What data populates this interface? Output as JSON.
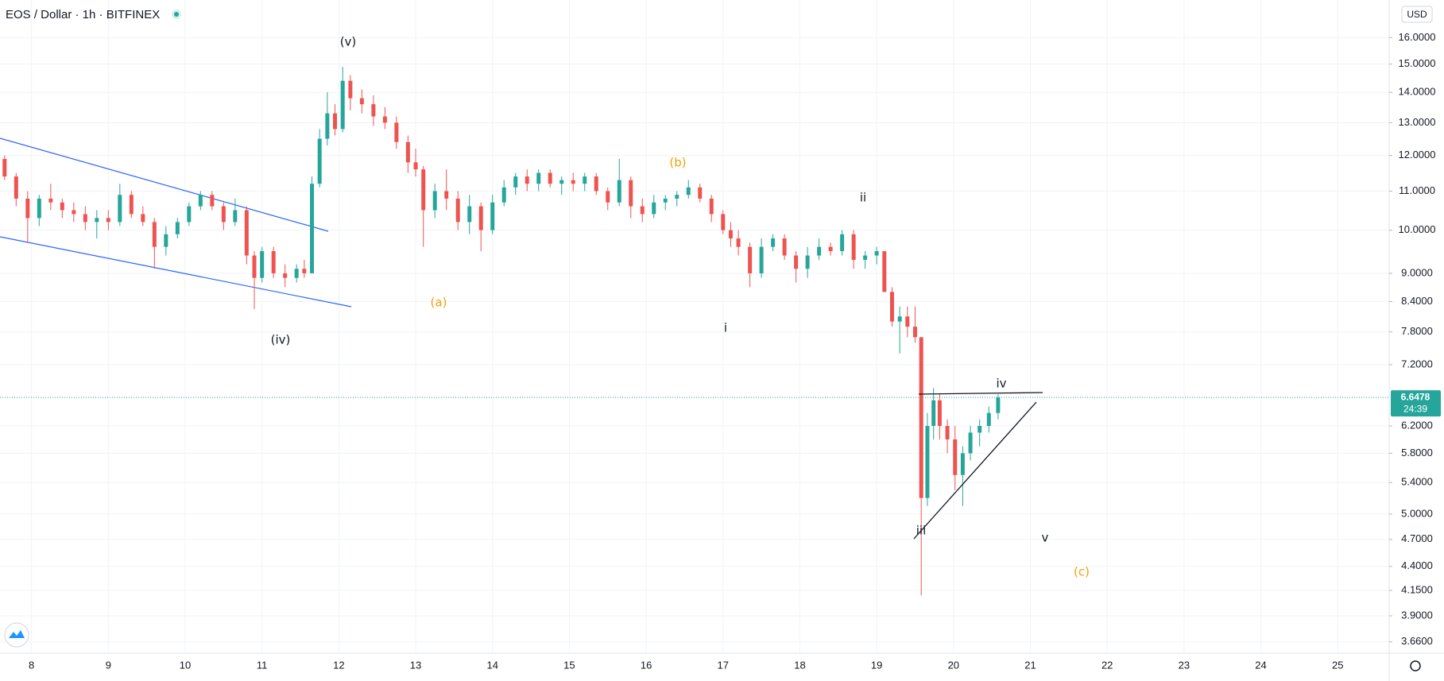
{
  "chart_data": {
    "type": "candlestick",
    "title": "EOS / Dollar · 1h · BITFINEX",
    "currency": "USD",
    "countdown": "24:39",
    "last_price": 6.6478,
    "log_scale": true,
    "grid": true,
    "up_color": "#26a69a",
    "down_color": "#ef5350",
    "xlim": [
      7.59,
      25.67
    ],
    "xticks": [
      8,
      9,
      10,
      11,
      12,
      13,
      14,
      15,
      16,
      17,
      18,
      19,
      20,
      21,
      22,
      23,
      24,
      25
    ],
    "ylim": [
      3.56,
      17.54
    ],
    "yticks": [
      {
        "value": 3.66,
        "label": "3.6600"
      },
      {
        "value": 3.9,
        "label": "3.9000"
      },
      {
        "value": 4.15,
        "label": "4.1500"
      },
      {
        "value": 4.4,
        "label": "4.4000"
      },
      {
        "value": 4.7,
        "label": "4.7000"
      },
      {
        "value": 5,
        "label": "5.0000"
      },
      {
        "value": 5.4,
        "label": "5.4000"
      },
      {
        "value": 5.8,
        "label": "5.8000"
      },
      {
        "value": 6.2,
        "label": "6.2000"
      },
      {
        "value": 7.2,
        "label": "7.2000"
      },
      {
        "value": 7.8,
        "label": "7.8000"
      },
      {
        "value": 8.4,
        "label": "8.4000"
      },
      {
        "value": 9,
        "label": "9.0000"
      },
      {
        "value": 10,
        "label": "10.0000"
      },
      {
        "value": 11,
        "label": "11.0000"
      },
      {
        "value": 12,
        "label": "12.0000"
      },
      {
        "value": 13,
        "label": "13.0000"
      },
      {
        "value": 14,
        "label": "14.0000"
      },
      {
        "value": 15,
        "label": "15.0000"
      },
      {
        "value": 16,
        "label": "16.0000"
      }
    ],
    "x": [
      7.65,
      7.8,
      7.95,
      8.1,
      8.25,
      8.4,
      8.55,
      8.7,
      8.85,
      9.0,
      9.15,
      9.3,
      9.45,
      9.6,
      9.75,
      9.9,
      10.05,
      10.2,
      10.35,
      10.5,
      10.65,
      10.8,
      10.9,
      11.0,
      11.15,
      11.3,
      11.45,
      11.55,
      11.65,
      11.75,
      11.85,
      11.95,
      12.05,
      12.15,
      12.3,
      12.45,
      12.6,
      12.75,
      12.9,
      13.0,
      13.1,
      13.25,
      13.4,
      13.55,
      13.7,
      13.85,
      14.0,
      14.15,
      14.3,
      14.45,
      14.6,
      14.75,
      14.9,
      15.05,
      15.2,
      15.35,
      15.5,
      15.65,
      15.8,
      15.95,
      16.1,
      16.25,
      16.4,
      16.55,
      16.7,
      16.85,
      17.0,
      17.1,
      17.2,
      17.35,
      17.5,
      17.65,
      17.8,
      17.95,
      18.1,
      18.25,
      18.4,
      18.55,
      18.7,
      18.85,
      19.0,
      19.1,
      19.2,
      19.3,
      19.4,
      19.5,
      19.58,
      19.66,
      19.74,
      19.82,
      19.92,
      20.02,
      20.12,
      20.22,
      20.34,
      20.46,
      20.58
    ],
    "open": [
      11.9,
      11.4,
      10.8,
      10.3,
      10.8,
      10.7,
      10.5,
      10.4,
      10.2,
      10.3,
      10.2,
      10.9,
      10.4,
      10.2,
      9.6,
      9.9,
      10.2,
      10.6,
      10.9,
      10.6,
      10.2,
      10.5,
      9.4,
      8.9,
      9.5,
      9.0,
      8.9,
      9.1,
      9.0,
      11.2,
      12.5,
      13.3,
      12.8,
      14.4,
      13.8,
      13.6,
      13.2,
      13.0,
      12.4,
      11.8,
      11.6,
      10.5,
      11.0,
      10.8,
      10.2,
      10.6,
      10.0,
      10.7,
      11.1,
      11.4,
      11.2,
      11.5,
      11.2,
      11.3,
      11.2,
      11.4,
      11.0,
      10.7,
      11.3,
      10.6,
      10.4,
      10.7,
      10.8,
      10.9,
      11.1,
      10.8,
      10.4,
      10.0,
      9.8,
      9.6,
      9.0,
      9.6,
      9.8,
      9.4,
      9.1,
      9.4,
      9.6,
      9.5,
      9.9,
      9.3,
      9.4,
      9.5,
      8.6,
      8.0,
      8.1,
      7.9,
      7.7,
      5.2,
      6.2,
      6.6,
      6.2,
      6.0,
      5.5,
      5.8,
      6.1,
      6.2,
      6.4
    ],
    "high": [
      12.0,
      11.5,
      11.0,
      10.9,
      11.2,
      10.8,
      10.7,
      10.6,
      10.5,
      10.5,
      11.2,
      11.0,
      10.6,
      10.3,
      10.1,
      10.3,
      10.7,
      11.0,
      11.0,
      10.7,
      10.8,
      10.6,
      9.5,
      9.6,
      9.6,
      9.2,
      9.2,
      9.3,
      11.4,
      12.8,
      14.0,
      13.6,
      14.9,
      14.6,
      14.1,
      13.9,
      13.5,
      13.2,
      12.6,
      12.2,
      11.7,
      11.2,
      11.6,
      11.0,
      10.9,
      10.7,
      10.9,
      11.3,
      11.5,
      11.6,
      11.6,
      11.6,
      11.4,
      11.5,
      11.5,
      11.5,
      11.1,
      11.9,
      11.4,
      10.8,
      10.9,
      10.9,
      11.0,
      11.3,
      11.2,
      10.9,
      10.5,
      10.2,
      10.0,
      9.7,
      9.8,
      9.9,
      9.9,
      9.5,
      9.6,
      9.8,
      9.7,
      10.0,
      10.0,
      9.5,
      9.6,
      9.5,
      8.7,
      8.3,
      8.3,
      8.3,
      7.7,
      6.4,
      6.8,
      6.7,
      6.3,
      6.2,
      5.9,
      6.2,
      6.3,
      6.5,
      6.7
    ],
    "low": [
      11.3,
      10.6,
      9.7,
      10.1,
      10.5,
      10.3,
      10.2,
      10.0,
      9.8,
      10.0,
      10.1,
      10.3,
      10.1,
      9.1,
      9.4,
      9.8,
      10.1,
      10.5,
      10.5,
      10.0,
      10.1,
      9.2,
      8.25,
      8.8,
      8.9,
      8.7,
      8.8,
      8.9,
      9.0,
      11.1,
      12.3,
      12.6,
      12.7,
      13.4,
      13.3,
      12.9,
      12.8,
      12.2,
      11.5,
      11.4,
      9.6,
      10.3,
      10.5,
      10.0,
      9.9,
      9.5,
      9.9,
      10.6,
      10.9,
      11.0,
      11.0,
      11.1,
      10.9,
      11.0,
      11.0,
      10.9,
      10.5,
      10.6,
      10.3,
      10.2,
      10.3,
      10.5,
      10.6,
      10.8,
      10.7,
      10.2,
      9.9,
      9.6,
      9.4,
      8.7,
      8.9,
      9.5,
      9.3,
      8.8,
      8.9,
      9.3,
      9.4,
      9.4,
      9.1,
      9.1,
      9.2,
      8.6,
      7.9,
      7.4,
      7.7,
      7.6,
      4.1,
      5.1,
      6.0,
      6.0,
      5.8,
      5.3,
      5.1,
      5.7,
      5.9,
      6.1,
      6.3
    ],
    "close": [
      11.4,
      10.8,
      10.3,
      10.8,
      10.7,
      10.5,
      10.4,
      10.2,
      10.3,
      10.2,
      10.9,
      10.4,
      10.2,
      9.6,
      9.9,
      10.2,
      10.6,
      10.9,
      10.6,
      10.2,
      10.5,
      9.4,
      8.9,
      9.5,
      9.0,
      8.9,
      9.1,
      9.0,
      11.2,
      12.5,
      13.3,
      12.8,
      14.4,
      13.8,
      13.6,
      13.2,
      13.0,
      12.4,
      11.8,
      11.6,
      10.5,
      11.0,
      10.8,
      10.2,
      10.6,
      10.0,
      10.7,
      11.1,
      11.4,
      11.2,
      11.5,
      11.2,
      11.3,
      11.2,
      11.4,
      11.0,
      10.7,
      11.3,
      10.6,
      10.4,
      10.7,
      10.8,
      10.9,
      11.1,
      10.8,
      10.4,
      10.0,
      9.8,
      9.6,
      9.0,
      9.6,
      9.8,
      9.4,
      9.1,
      9.4,
      9.6,
      9.5,
      9.9,
      9.3,
      9.4,
      9.5,
      8.6,
      8.0,
      8.1,
      7.9,
      7.7,
      5.2,
      6.2,
      6.6,
      6.2,
      6.0,
      5.5,
      5.8,
      6.1,
      6.2,
      6.4,
      6.6478
    ],
    "annotations": [
      {
        "text": "(v)",
        "color": "#131722"
      },
      {
        "text": "(iv)",
        "color": "#131722"
      },
      {
        "text": "(a)",
        "color": "#f0a30a"
      },
      {
        "text": "(b)",
        "color": "#f0a30a"
      },
      {
        "text": "i",
        "color": "#131722"
      },
      {
        "text": "ii",
        "color": "#131722"
      },
      {
        "text": "iii",
        "color": "#131722"
      },
      {
        "text": "iv",
        "color": "#131722"
      },
      {
        "text": "v",
        "color": "#131722"
      },
      {
        "text": "(c)",
        "color": "#f0a30a"
      }
    ]
  }
}
